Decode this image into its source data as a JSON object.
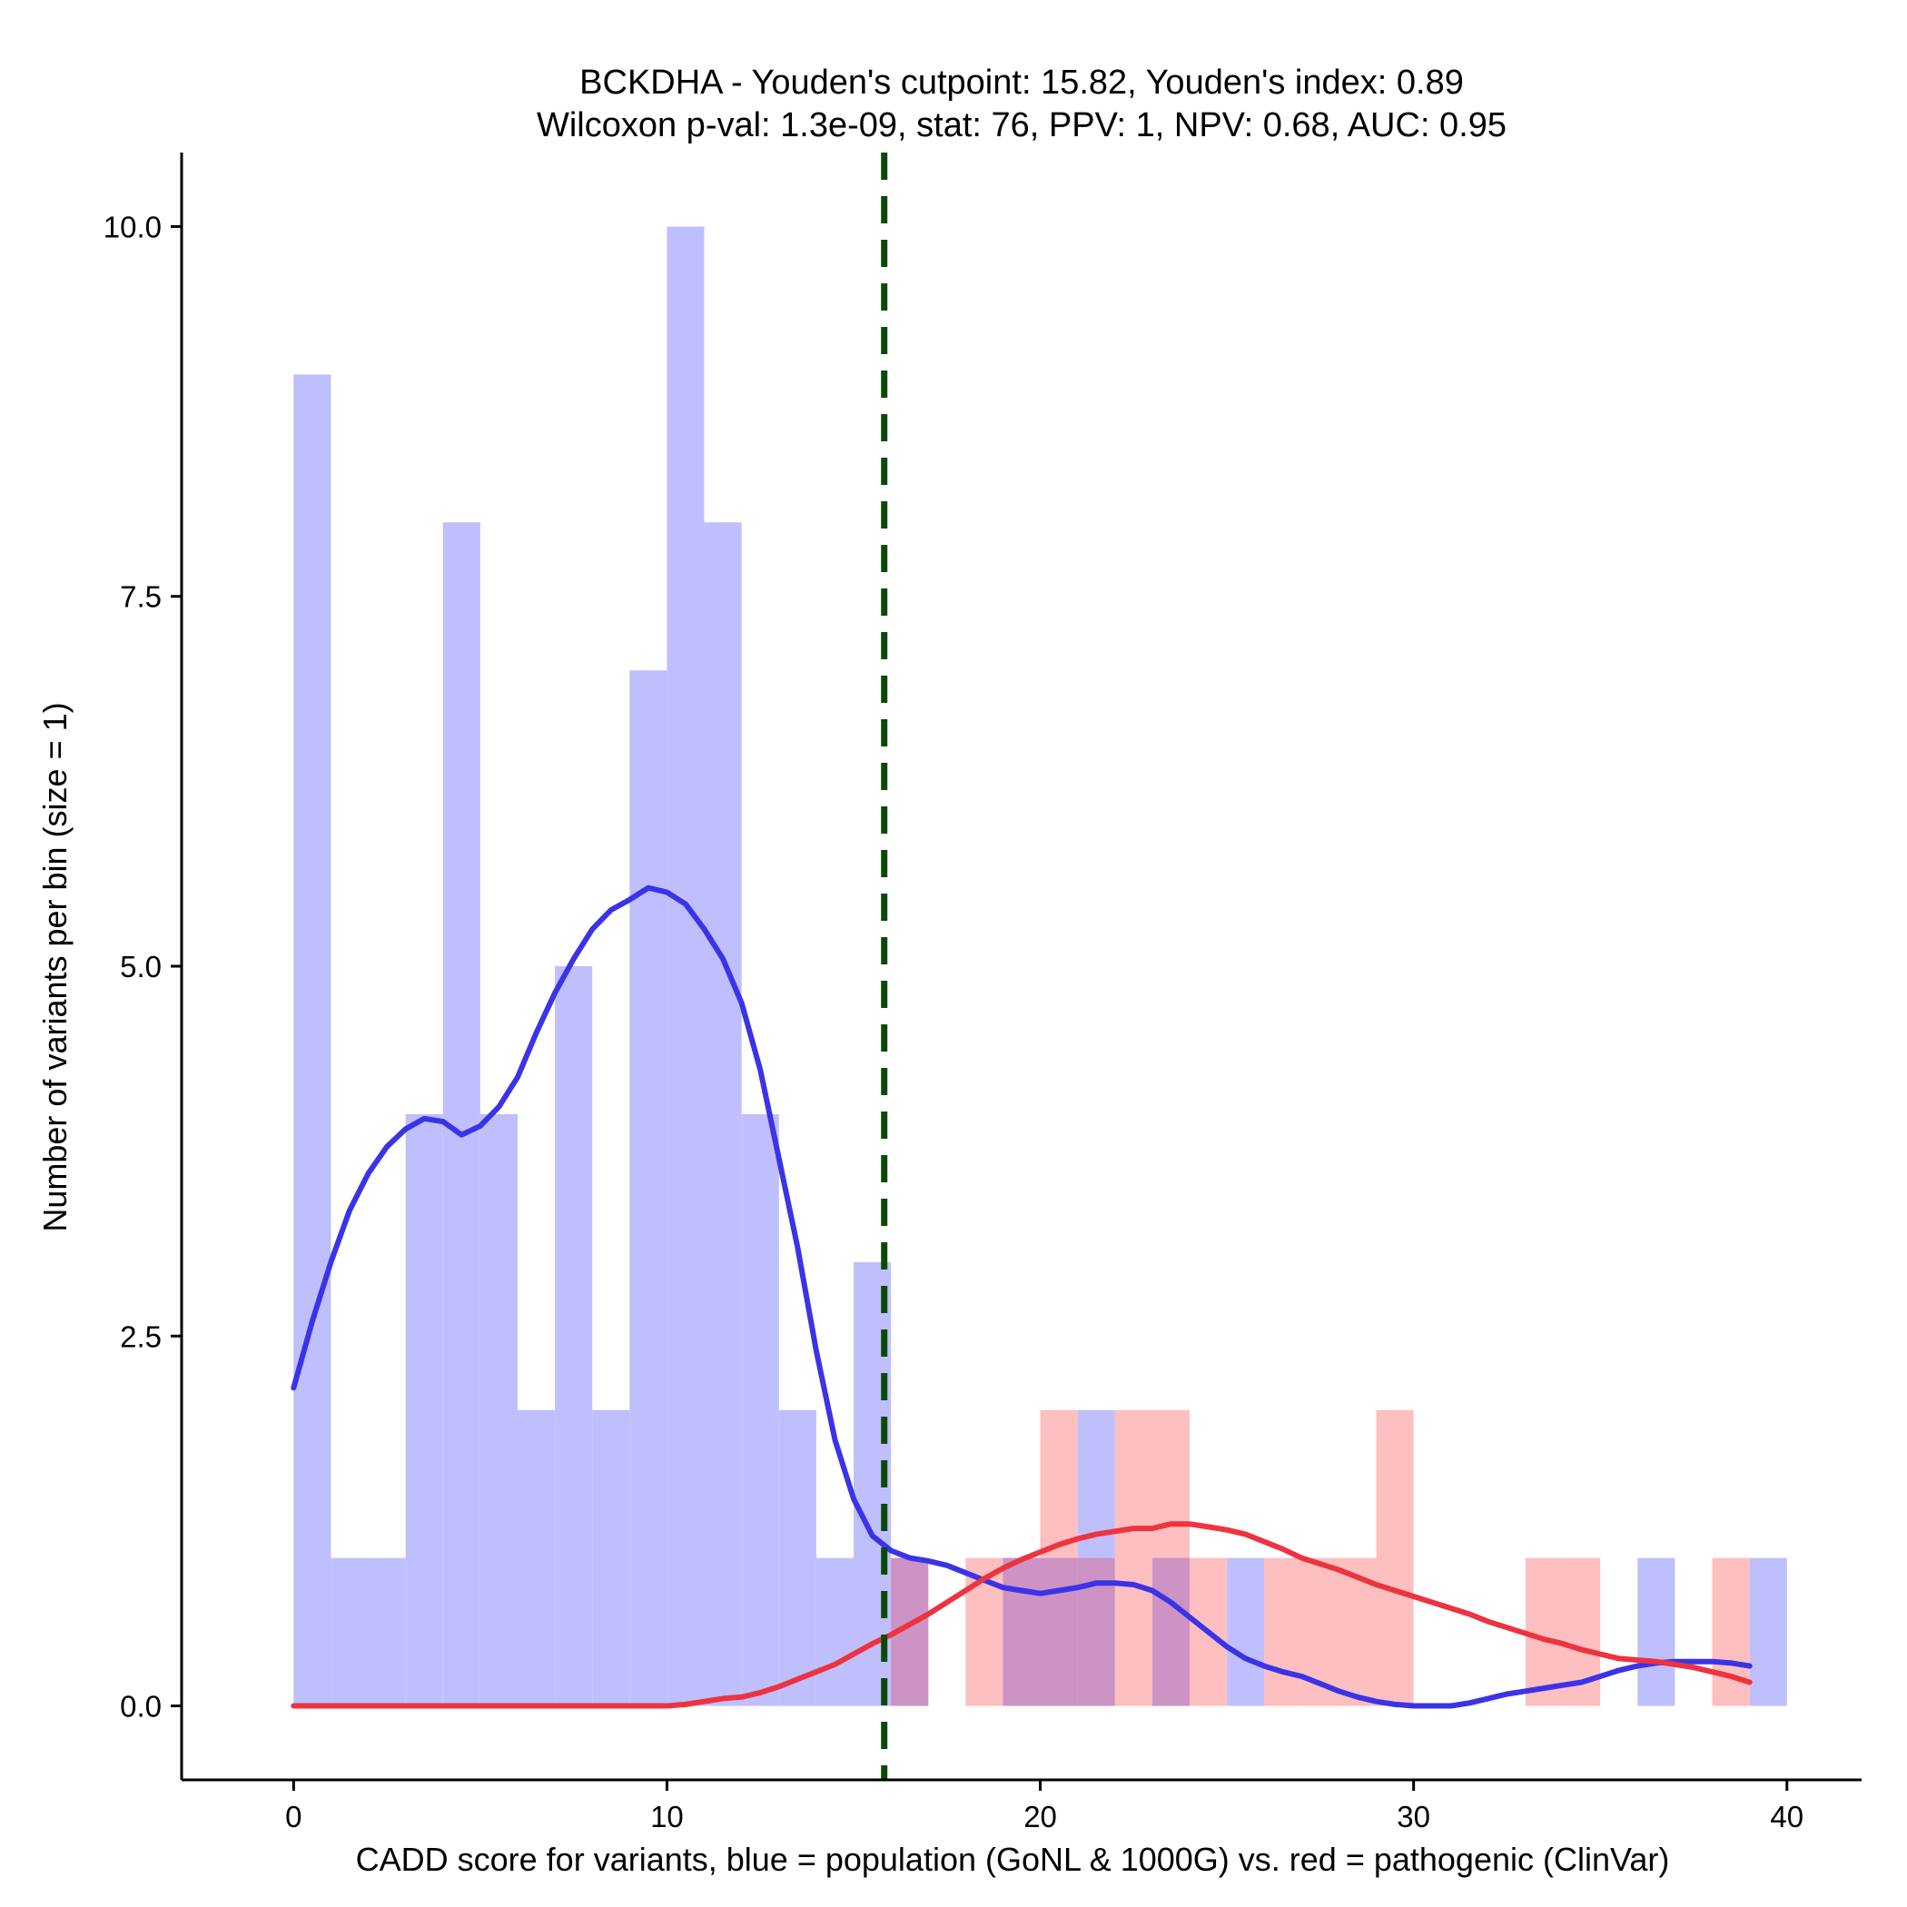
{
  "chart_data": {
    "type": "bar",
    "title_line1": "BCKDHA - Youden's cutpoint: 15.82, Youden's index: 0.89",
    "title_line2": "Wilcoxon p-val: 1.3e-09, stat: 76, PPV: 1, NPV: 0.68, AUC: 0.95",
    "xlabel": "CADD score for variants, blue = population (GoNL & 1000G) vs. red = pathogenic (ClinVar)",
    "ylabel": "Number of variants per bin (size = 1)",
    "xlim": [
      -3,
      42
    ],
    "ylim": [
      -0.5,
      10.5
    ],
    "xticks": [
      0,
      10,
      20,
      30,
      40
    ],
    "xtick_labels": [
      "0",
      "10",
      "20",
      "30",
      "40"
    ],
    "yticks": [
      0,
      2.5,
      5,
      7.5,
      10
    ],
    "ytick_labels": [
      "0.0",
      "2.5",
      "5.0",
      "7.5",
      "10.0"
    ],
    "bin_size": 1,
    "cutpoint": 15.82,
    "colors": {
      "population_bar": "#bfbffd",
      "pathogenic_bar": "#fdbfbf",
      "overlap_bar": "#cc93c4",
      "population_line": "#3a33e8",
      "pathogenic_line": "#ee3340",
      "cutpoint_line": "#0b4a06",
      "axis": "#000000"
    },
    "series": [
      {
        "name": "population (GoNL & 1000G)",
        "bins": [
          {
            "start": 0,
            "count": 9
          },
          {
            "start": 1,
            "count": 1
          },
          {
            "start": 2,
            "count": 1
          },
          {
            "start": 3,
            "count": 4
          },
          {
            "start": 4,
            "count": 8
          },
          {
            "start": 5,
            "count": 4
          },
          {
            "start": 6,
            "count": 2
          },
          {
            "start": 7,
            "count": 5
          },
          {
            "start": 8,
            "count": 2
          },
          {
            "start": 9,
            "count": 7
          },
          {
            "start": 10,
            "count": 10
          },
          {
            "start": 11,
            "count": 8
          },
          {
            "start": 12,
            "count": 4
          },
          {
            "start": 13,
            "count": 2
          },
          {
            "start": 14,
            "count": 1
          },
          {
            "start": 15,
            "count": 3
          },
          {
            "start": 16,
            "count": 1
          },
          {
            "start": 19,
            "count": 1
          },
          {
            "start": 20,
            "count": 1
          },
          {
            "start": 21,
            "count": 2
          },
          {
            "start": 23,
            "count": 1
          },
          {
            "start": 25,
            "count": 1
          },
          {
            "start": 36,
            "count": 1
          },
          {
            "start": 39,
            "count": 1
          }
        ],
        "density": [
          [
            0,
            2.15
          ],
          [
            0.5,
            2.6
          ],
          [
            1,
            3.0
          ],
          [
            1.5,
            3.35
          ],
          [
            2,
            3.6
          ],
          [
            2.5,
            3.78
          ],
          [
            3,
            3.9
          ],
          [
            3.5,
            3.97
          ],
          [
            4,
            3.95
          ],
          [
            4.5,
            3.86
          ],
          [
            5,
            3.92
          ],
          [
            5.5,
            4.05
          ],
          [
            6,
            4.25
          ],
          [
            6.5,
            4.55
          ],
          [
            7,
            4.82
          ],
          [
            7.5,
            5.05
          ],
          [
            8,
            5.25
          ],
          [
            8.5,
            5.38
          ],
          [
            9,
            5.45
          ],
          [
            9.5,
            5.53
          ],
          [
            10,
            5.5
          ],
          [
            10.5,
            5.42
          ],
          [
            11,
            5.25
          ],
          [
            11.5,
            5.05
          ],
          [
            12,
            4.75
          ],
          [
            12.5,
            4.3
          ],
          [
            13,
            3.7
          ],
          [
            13.5,
            3.1
          ],
          [
            14,
            2.4
          ],
          [
            14.5,
            1.8
          ],
          [
            15,
            1.4
          ],
          [
            15.5,
            1.15
          ],
          [
            16,
            1.05
          ],
          [
            16.5,
            1.0
          ],
          [
            17,
            0.98
          ],
          [
            17.5,
            0.95
          ],
          [
            18,
            0.9
          ],
          [
            18.5,
            0.85
          ],
          [
            19,
            0.8
          ],
          [
            19.5,
            0.78
          ],
          [
            20,
            0.76
          ],
          [
            20.5,
            0.78
          ],
          [
            21,
            0.8
          ],
          [
            21.5,
            0.83
          ],
          [
            22,
            0.83
          ],
          [
            22.5,
            0.82
          ],
          [
            23,
            0.78
          ],
          [
            23.5,
            0.7
          ],
          [
            24,
            0.6
          ],
          [
            24.5,
            0.5
          ],
          [
            25,
            0.4
          ],
          [
            25.5,
            0.32
          ],
          [
            26,
            0.27
          ],
          [
            26.5,
            0.23
          ],
          [
            27,
            0.2
          ],
          [
            27.5,
            0.15
          ],
          [
            28,
            0.1
          ],
          [
            28.5,
            0.06
          ],
          [
            29,
            0.03
          ],
          [
            29.5,
            0.01
          ],
          [
            30,
            0.0
          ],
          [
            30.5,
            0.0
          ],
          [
            31,
            0.0
          ],
          [
            31.5,
            0.02
          ],
          [
            32,
            0.05
          ],
          [
            32.5,
            0.08
          ],
          [
            33,
            0.1
          ],
          [
            33.5,
            0.12
          ],
          [
            34,
            0.14
          ],
          [
            34.5,
            0.16
          ],
          [
            35,
            0.2
          ],
          [
            35.5,
            0.24
          ],
          [
            36,
            0.27
          ],
          [
            36.5,
            0.29
          ],
          [
            37,
            0.3
          ],
          [
            37.5,
            0.3
          ],
          [
            38,
            0.3
          ],
          [
            38.5,
            0.29
          ],
          [
            39,
            0.27
          ]
        ]
      },
      {
        "name": "pathogenic (ClinVar)",
        "bins": [
          {
            "start": 16,
            "count": 1
          },
          {
            "start": 18,
            "count": 1
          },
          {
            "start": 19,
            "count": 1
          },
          {
            "start": 20,
            "count": 2
          },
          {
            "start": 21,
            "count": 1
          },
          {
            "start": 22,
            "count": 2
          },
          {
            "start": 23,
            "count": 2
          },
          {
            "start": 24,
            "count": 1
          },
          {
            "start": 26,
            "count": 1
          },
          {
            "start": 27,
            "count": 1
          },
          {
            "start": 28,
            "count": 1
          },
          {
            "start": 29,
            "count": 2
          },
          {
            "start": 33,
            "count": 1
          },
          {
            "start": 34,
            "count": 1
          },
          {
            "start": 38,
            "count": 1
          }
        ],
        "density": [
          [
            0,
            0.0
          ],
          [
            2,
            0.0
          ],
          [
            4,
            0.0
          ],
          [
            6,
            0.0
          ],
          [
            8,
            0.0
          ],
          [
            10,
            0.0
          ],
          [
            10.5,
            0.01
          ],
          [
            11,
            0.03
          ],
          [
            11.5,
            0.05
          ],
          [
            12,
            0.06
          ],
          [
            12.5,
            0.09
          ],
          [
            13,
            0.13
          ],
          [
            13.5,
            0.18
          ],
          [
            14,
            0.23
          ],
          [
            14.5,
            0.28
          ],
          [
            15,
            0.35
          ],
          [
            15.5,
            0.42
          ],
          [
            16,
            0.48
          ],
          [
            16.5,
            0.55
          ],
          [
            17,
            0.62
          ],
          [
            17.5,
            0.7
          ],
          [
            18,
            0.78
          ],
          [
            18.5,
            0.86
          ],
          [
            19,
            0.93
          ],
          [
            19.5,
            0.99
          ],
          [
            20,
            1.04
          ],
          [
            20.5,
            1.09
          ],
          [
            21,
            1.13
          ],
          [
            21.5,
            1.16
          ],
          [
            22,
            1.18
          ],
          [
            22.5,
            1.2
          ],
          [
            23,
            1.2
          ],
          [
            23.5,
            1.23
          ],
          [
            24,
            1.23
          ],
          [
            24.5,
            1.21
          ],
          [
            25,
            1.19
          ],
          [
            25.5,
            1.16
          ],
          [
            26,
            1.11
          ],
          [
            26.5,
            1.06
          ],
          [
            27,
            1.0
          ],
          [
            27.5,
            0.96
          ],
          [
            28,
            0.92
          ],
          [
            28.5,
            0.87
          ],
          [
            29,
            0.82
          ],
          [
            29.5,
            0.78
          ],
          [
            30,
            0.74
          ],
          [
            30.5,
            0.7
          ],
          [
            31,
            0.66
          ],
          [
            31.5,
            0.62
          ],
          [
            32,
            0.57
          ],
          [
            32.5,
            0.53
          ],
          [
            33,
            0.49
          ],
          [
            33.5,
            0.45
          ],
          [
            34,
            0.42
          ],
          [
            34.5,
            0.38
          ],
          [
            35,
            0.35
          ],
          [
            35.5,
            0.32
          ],
          [
            36,
            0.31
          ],
          [
            36.5,
            0.3
          ],
          [
            37,
            0.28
          ],
          [
            37.5,
            0.26
          ],
          [
            38,
            0.23
          ],
          [
            38.5,
            0.2
          ],
          [
            39,
            0.16
          ]
        ]
      }
    ]
  }
}
